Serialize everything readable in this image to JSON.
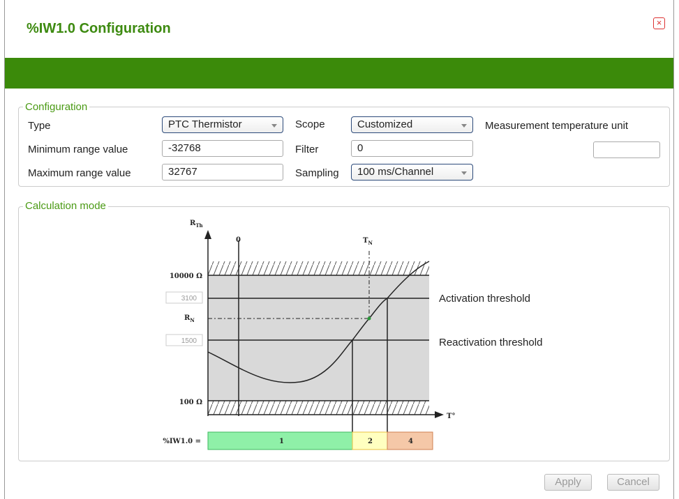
{
  "header": {
    "title": "%IW1.0 Configuration"
  },
  "configuration": {
    "legend": "Configuration",
    "type_label": "Type",
    "type_value": "PTC Thermistor",
    "scope_label": "Scope",
    "scope_value": "Customized",
    "unit_label": "Measurement temperature unit",
    "min_label": "Minimum range value",
    "min_value": "-32768",
    "filter_label": "Filter",
    "filter_value": "0",
    "max_label": "Maximum range value",
    "max_value": "32767",
    "sampling_label": "Sampling",
    "sampling_value": "100 ms/Channel"
  },
  "calculation": {
    "legend": "Calculation mode",
    "y_axis": {
      "main": "R",
      "sub": "Th"
    },
    "zero": "0",
    "tn": {
      "main": "T",
      "sub": "N"
    },
    "r_high": "10000 Ω",
    "activation_value": "3100",
    "rn": {
      "main": "R",
      "sub": "N"
    },
    "reactivation_value": "1500",
    "r_low": "100 Ω",
    "x_axis": "T°",
    "output_label": "%IW1.0 =",
    "zones": [
      "1",
      "2",
      "4"
    ],
    "activation": "Activation threshold",
    "reactivation": "Reactivation threshold"
  },
  "buttons": {
    "apply": "Apply",
    "cancel": "Cancel"
  }
}
